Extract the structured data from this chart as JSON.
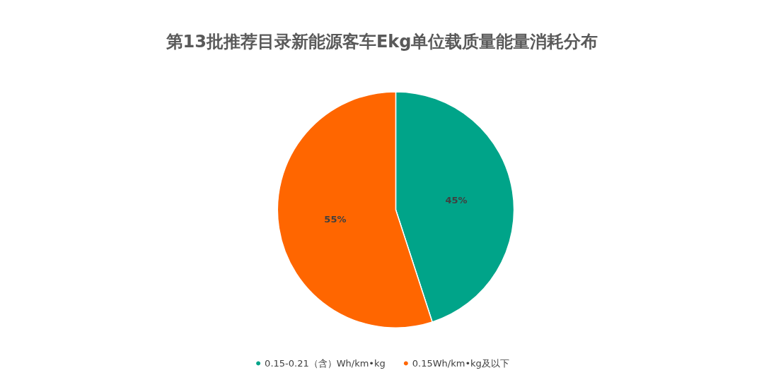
{
  "chart_data": {
    "type": "pie",
    "title": "第13批推荐目录新能源客车Ekg单位载质量能量消耗分布",
    "categories": [
      "0.15-0.21（含）Wh/km•kg",
      "0.15Wh/km•kg及以下"
    ],
    "values": [
      45,
      55
    ],
    "colors": [
      "#00a489",
      "#ff6600"
    ],
    "value_labels": [
      "45%",
      "55%"
    ],
    "legend": "bottom"
  }
}
